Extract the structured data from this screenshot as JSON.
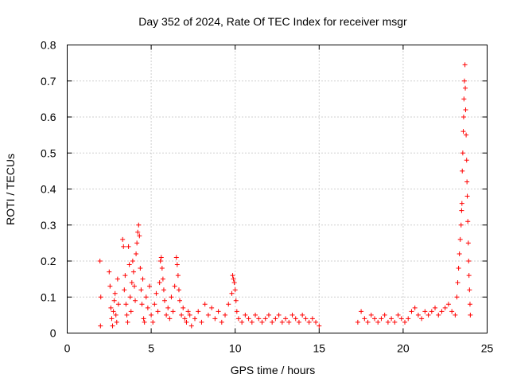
{
  "chart_data": {
    "type": "scatter",
    "title": "Day 352 of 2024, Rate Of TEC Index for receiver msgr",
    "xlabel": "GPS time / hours",
    "ylabel": "ROTI / TECUs",
    "xlim": [
      0,
      25
    ],
    "ylim": [
      0,
      0.8
    ],
    "x_ticks": [
      0,
      5,
      10,
      15,
      20,
      25
    ],
    "y_ticks": [
      0,
      0.1,
      0.2,
      0.3,
      0.4,
      0.5,
      0.6,
      0.7,
      0.8
    ],
    "x_tick_labels": [
      "0",
      "5",
      "10",
      "15",
      "20",
      "25"
    ],
    "y_tick_labels": [
      "0",
      "0.1",
      "0.2",
      "0.3",
      "0.4",
      "0.5",
      "0.6",
      "0.7",
      "0.8"
    ],
    "grid": true,
    "marker": "+",
    "color": "#ff0000",
    "series": [
      {
        "name": "ROTI",
        "points": [
          [
            1.95,
            0.2
          ],
          [
            2.0,
            0.1
          ],
          [
            1.98,
            0.02
          ],
          [
            2.5,
            0.17
          ],
          [
            2.55,
            0.13
          ],
          [
            2.6,
            0.07
          ],
          [
            2.65,
            0.04
          ],
          [
            2.7,
            0.02
          ],
          [
            2.75,
            0.06
          ],
          [
            2.8,
            0.09
          ],
          [
            2.85,
            0.11
          ],
          [
            2.9,
            0.05
          ],
          [
            2.95,
            0.03
          ],
          [
            3.0,
            0.15
          ],
          [
            3.05,
            0.08
          ],
          [
            3.3,
            0.26
          ],
          [
            3.35,
            0.24
          ],
          [
            3.4,
            0.12
          ],
          [
            3.45,
            0.16
          ],
          [
            3.5,
            0.08
          ],
          [
            3.55,
            0.05
          ],
          [
            3.6,
            0.03
          ],
          [
            3.65,
            0.24
          ],
          [
            3.7,
            0.19
          ],
          [
            3.75,
            0.1
          ],
          [
            3.8,
            0.06
          ],
          [
            3.85,
            0.14
          ],
          [
            3.9,
            0.2
          ],
          [
            3.95,
            0.17
          ],
          [
            4.0,
            0.13
          ],
          [
            4.05,
            0.09
          ],
          [
            4.1,
            0.22
          ],
          [
            4.15,
            0.25
          ],
          [
            4.2,
            0.28
          ],
          [
            4.25,
            0.3
          ],
          [
            4.3,
            0.27
          ],
          [
            4.35,
            0.18
          ],
          [
            4.4,
            0.12
          ],
          [
            4.45,
            0.08
          ],
          [
            4.5,
            0.15
          ],
          [
            4.55,
            0.04
          ],
          [
            4.6,
            0.03
          ],
          [
            4.7,
            0.1
          ],
          [
            4.8,
            0.07
          ],
          [
            4.9,
            0.13
          ],
          [
            5.0,
            0.05
          ],
          [
            5.1,
            0.03
          ],
          [
            5.2,
            0.08
          ],
          [
            5.3,
            0.11
          ],
          [
            5.4,
            0.06
          ],
          [
            5.5,
            0.14
          ],
          [
            5.55,
            0.2
          ],
          [
            5.6,
            0.21
          ],
          [
            5.65,
            0.18
          ],
          [
            5.7,
            0.15
          ],
          [
            5.75,
            0.12
          ],
          [
            5.8,
            0.09
          ],
          [
            5.9,
            0.05
          ],
          [
            6.0,
            0.07
          ],
          [
            6.1,
            0.04
          ],
          [
            6.2,
            0.1
          ],
          [
            6.3,
            0.06
          ],
          [
            6.4,
            0.13
          ],
          [
            6.5,
            0.21
          ],
          [
            6.55,
            0.19
          ],
          [
            6.6,
            0.16
          ],
          [
            6.65,
            0.12
          ],
          [
            6.7,
            0.09
          ],
          [
            6.8,
            0.05
          ],
          [
            6.9,
            0.07
          ],
          [
            7.0,
            0.04
          ],
          [
            7.1,
            0.03
          ],
          [
            7.2,
            0.06
          ],
          [
            7.3,
            0.05
          ],
          [
            7.4,
            0.02
          ],
          [
            7.6,
            0.04
          ],
          [
            7.8,
            0.06
          ],
          [
            8.0,
            0.03
          ],
          [
            8.2,
            0.08
          ],
          [
            8.4,
            0.05
          ],
          [
            8.6,
            0.07
          ],
          [
            8.8,
            0.04
          ],
          [
            9.0,
            0.06
          ],
          [
            9.2,
            0.03
          ],
          [
            9.4,
            0.05
          ],
          [
            9.6,
            0.08
          ],
          [
            9.8,
            0.11
          ],
          [
            9.85,
            0.16
          ],
          [
            9.9,
            0.15
          ],
          [
            9.95,
            0.14
          ],
          [
            10.0,
            0.12
          ],
          [
            10.05,
            0.09
          ],
          [
            10.1,
            0.06
          ],
          [
            10.2,
            0.04
          ],
          [
            10.4,
            0.03
          ],
          [
            10.6,
            0.05
          ],
          [
            10.8,
            0.04
          ],
          [
            11.0,
            0.03
          ],
          [
            11.2,
            0.05
          ],
          [
            11.4,
            0.04
          ],
          [
            11.6,
            0.03
          ],
          [
            11.8,
            0.04
          ],
          [
            12.0,
            0.05
          ],
          [
            12.2,
            0.03
          ],
          [
            12.4,
            0.04
          ],
          [
            12.6,
            0.05
          ],
          [
            12.8,
            0.03
          ],
          [
            13.0,
            0.04
          ],
          [
            13.2,
            0.03
          ],
          [
            13.4,
            0.05
          ],
          [
            13.6,
            0.04
          ],
          [
            13.8,
            0.03
          ],
          [
            14.0,
            0.05
          ],
          [
            14.2,
            0.04
          ],
          [
            14.4,
            0.03
          ],
          [
            14.6,
            0.04
          ],
          [
            14.8,
            0.03
          ],
          [
            15.0,
            0.02
          ],
          [
            17.3,
            0.03
          ],
          [
            17.5,
            0.06
          ],
          [
            17.7,
            0.04
          ],
          [
            17.9,
            0.03
          ],
          [
            18.1,
            0.05
          ],
          [
            18.3,
            0.04
          ],
          [
            18.5,
            0.03
          ],
          [
            18.7,
            0.04
          ],
          [
            18.9,
            0.05
          ],
          [
            19.1,
            0.03
          ],
          [
            19.3,
            0.04
          ],
          [
            19.5,
            0.03
          ],
          [
            19.7,
            0.05
          ],
          [
            19.9,
            0.04
          ],
          [
            20.1,
            0.03
          ],
          [
            20.3,
            0.04
          ],
          [
            20.5,
            0.06
          ],
          [
            20.7,
            0.07
          ],
          [
            20.9,
            0.05
          ],
          [
            21.1,
            0.04
          ],
          [
            21.3,
            0.06
          ],
          [
            21.5,
            0.05
          ],
          [
            21.7,
            0.06
          ],
          [
            21.9,
            0.07
          ],
          [
            22.1,
            0.05
          ],
          [
            22.3,
            0.06
          ],
          [
            22.5,
            0.07
          ],
          [
            22.7,
            0.08
          ],
          [
            22.9,
            0.06
          ],
          [
            23.1,
            0.05
          ],
          [
            23.2,
            0.1
          ],
          [
            23.25,
            0.14
          ],
          [
            23.3,
            0.18
          ],
          [
            23.35,
            0.22
          ],
          [
            23.4,
            0.26
          ],
          [
            23.45,
            0.3
          ],
          [
            23.48,
            0.34
          ],
          [
            23.5,
            0.36
          ],
          [
            23.52,
            0.45
          ],
          [
            23.55,
            0.5
          ],
          [
            23.58,
            0.56
          ],
          [
            23.6,
            0.6
          ],
          [
            23.62,
            0.65
          ],
          [
            23.65,
            0.7
          ],
          [
            23.68,
            0.745
          ],
          [
            23.7,
            0.68
          ],
          [
            23.72,
            0.62
          ],
          [
            23.75,
            0.55
          ],
          [
            23.78,
            0.48
          ],
          [
            23.8,
            0.42
          ],
          [
            23.82,
            0.38
          ],
          [
            23.85,
            0.31
          ],
          [
            23.88,
            0.25
          ],
          [
            23.9,
            0.2
          ],
          [
            23.92,
            0.16
          ],
          [
            23.95,
            0.12
          ],
          [
            23.98,
            0.08
          ],
          [
            24.0,
            0.05
          ]
        ]
      }
    ]
  }
}
